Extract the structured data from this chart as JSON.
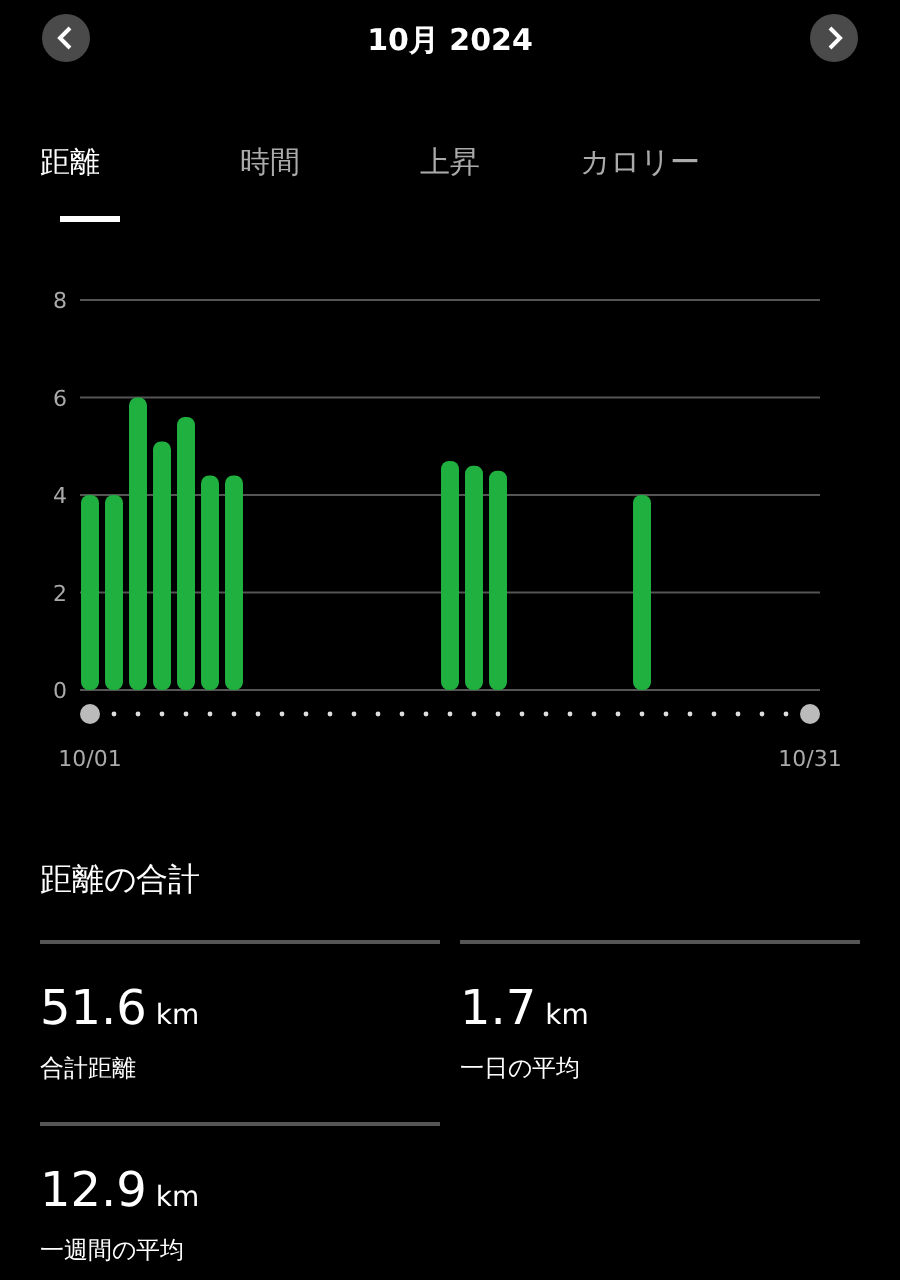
{
  "chart_data": {
    "type": "bar",
    "title": "10月 2024",
    "categories": [
      "10/01",
      null,
      null,
      null,
      null,
      null,
      null,
      null,
      null,
      null,
      null,
      null,
      null,
      null,
      null,
      null,
      null,
      null,
      null,
      null,
      null,
      null,
      null,
      null,
      null,
      null,
      null,
      null,
      null,
      null,
      "10/31"
    ],
    "values": [
      4.0,
      4.0,
      6.0,
      5.1,
      5.6,
      4.4,
      4.4,
      null,
      null,
      null,
      null,
      null,
      null,
      null,
      null,
      4.7,
      4.6,
      4.5,
      null,
      null,
      null,
      null,
      null,
      4.0,
      null,
      null,
      null,
      null,
      null,
      null,
      null
    ],
    "color": "#1fb040",
    "ylim": [
      0,
      8
    ],
    "yticks": [
      0,
      2,
      4,
      6,
      8
    ],
    "grid": "y",
    "annotations": [
      "距離",
      "時間",
      "上昇",
      "カロリー",
      "距離の合計",
      "51.6 km",
      "合計距離",
      "1.7 km",
      "一日の平均",
      "12.9 km",
      "一週間の平均"
    ]
  }
}
